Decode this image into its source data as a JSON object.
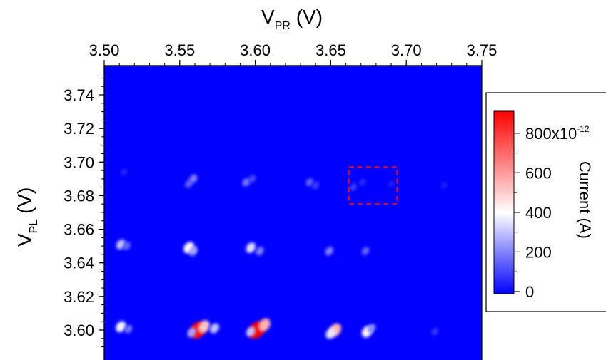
{
  "chart_data": {
    "type": "heatmap",
    "title": "",
    "xlabel": {
      "main": "V",
      "sub": "PR",
      "unit": " (V)"
    },
    "ylabel": {
      "main": "V",
      "sub": "PL",
      "unit": " (V)"
    },
    "xlim": [
      3.5,
      3.75
    ],
    "ylim": [
      3.585,
      3.752
    ],
    "x_ticks": [
      3.5,
      3.55,
      3.6,
      3.65,
      3.7,
      3.75
    ],
    "x_tick_labels": [
      "3.50",
      "3.55",
      "3.60",
      "3.65",
      "3.70",
      "3.75"
    ],
    "y_ticks": [
      3.6,
      3.62,
      3.64,
      3.66,
      3.68,
      3.7,
      3.72,
      3.74
    ],
    "y_tick_labels": [
      "3.60",
      "3.62",
      "3.64",
      "3.66",
      "3.68",
      "3.70",
      "3.72",
      "3.74"
    ],
    "x_axis_position": "top",
    "grid": false,
    "background_value": 0,
    "colorscale": {
      "low": "#0000ff",
      "mid": "#ffffff",
      "high": "#ff0000",
      "min": 0,
      "mid_value": 400,
      "max": 900
    },
    "colorbar": {
      "label": "Current (A)",
      "ticks": [
        0,
        200,
        400,
        600,
        800
      ],
      "tick_labels": [
        "0",
        "200",
        "400",
        "600",
        "800x10"
      ],
      "exponent": "-12"
    },
    "features": [
      {
        "x": 3.511,
        "y": 3.602,
        "value": 380
      },
      {
        "x": 3.516,
        "y": 3.6005,
        "value": 180
      },
      {
        "x": 3.562,
        "y": 3.6,
        "value": 880
      },
      {
        "x": 3.566,
        "y": 3.602,
        "value": 520
      },
      {
        "x": 3.573,
        "y": 3.601,
        "value": 300
      },
      {
        "x": 3.558,
        "y": 3.5985,
        "value": 260
      },
      {
        "x": 3.601,
        "y": 3.6,
        "value": 900
      },
      {
        "x": 3.606,
        "y": 3.603,
        "value": 560
      },
      {
        "x": 3.597,
        "y": 3.599,
        "value": 300
      },
      {
        "x": 3.653,
        "y": 3.6,
        "value": 560
      },
      {
        "x": 3.65,
        "y": 3.598,
        "value": 360
      },
      {
        "x": 3.674,
        "y": 3.599,
        "value": 420
      },
      {
        "x": 3.677,
        "y": 3.601,
        "value": 220
      },
      {
        "x": 3.719,
        "y": 3.599,
        "value": 90
      },
      {
        "x": 3.511,
        "y": 3.651,
        "value": 300
      },
      {
        "x": 3.515,
        "y": 3.65,
        "value": 160
      },
      {
        "x": 3.556,
        "y": 3.649,
        "value": 420
      },
      {
        "x": 3.559,
        "y": 3.647,
        "value": 260
      },
      {
        "x": 3.597,
        "y": 3.649,
        "value": 340
      },
      {
        "x": 3.603,
        "y": 3.647,
        "value": 200
      },
      {
        "x": 3.649,
        "y": 3.647,
        "value": 200
      },
      {
        "x": 3.673,
        "y": 3.647,
        "value": 160
      },
      {
        "x": 3.513,
        "y": 3.694,
        "value": 60
      },
      {
        "x": 3.559,
        "y": 3.69,
        "value": 200
      },
      {
        "x": 3.556,
        "y": 3.687,
        "value": 150
      },
      {
        "x": 3.594,
        "y": 3.688,
        "value": 180
      },
      {
        "x": 3.598,
        "y": 3.69,
        "value": 120
      },
      {
        "x": 3.636,
        "y": 3.688,
        "value": 150
      },
      {
        "x": 3.64,
        "y": 3.686,
        "value": 100
      },
      {
        "x": 3.665,
        "y": 3.685,
        "value": 100
      },
      {
        "x": 3.671,
        "y": 3.688,
        "value": 70
      },
      {
        "x": 3.69,
        "y": 3.687,
        "value": 40
      },
      {
        "x": 3.725,
        "y": 3.686,
        "value": 40
      }
    ],
    "annotations": [
      {
        "type": "dashed-rectangle",
        "color": "#ff0000",
        "x_range": [
          3.662,
          3.694
        ],
        "y_range": [
          3.675,
          3.697
        ]
      }
    ]
  }
}
